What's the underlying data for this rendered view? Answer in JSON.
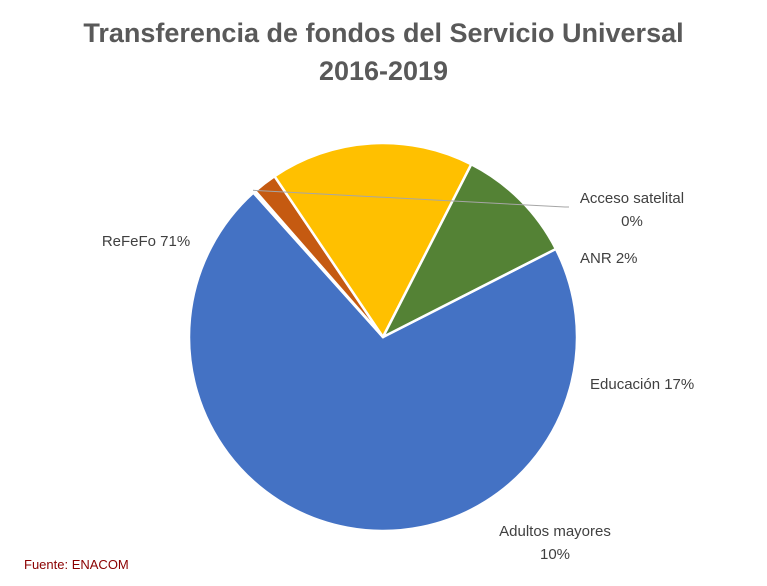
{
  "chart_data": {
    "type": "pie",
    "title_lines": [
      "Transferencia de fondos del Servicio Universal",
      "2016-2019"
    ],
    "slices": [
      {
        "name": "ReFeFo",
        "value": 71,
        "label_lines": [
          "ReFeFo 71%"
        ],
        "color": "#4472c4"
      },
      {
        "name": "Acceso satelital",
        "value": 0.2,
        "label_lines": [
          "Acceso satelital",
          "0%"
        ],
        "color": "#a5a5a5"
      },
      {
        "name": "ANR",
        "value": 2,
        "label_lines": [
          "ANR 2%"
        ],
        "color": "#c55a11"
      },
      {
        "name": "Educación",
        "value": 17,
        "label_lines": [
          "Educación 17%"
        ],
        "color": "#ffc000"
      },
      {
        "name": "Adultos mayores",
        "value": 10,
        "label_lines": [
          "Adultos mayores",
          "10%"
        ],
        "color": "#548235"
      }
    ],
    "source": "Fuente: ENACOM"
  }
}
